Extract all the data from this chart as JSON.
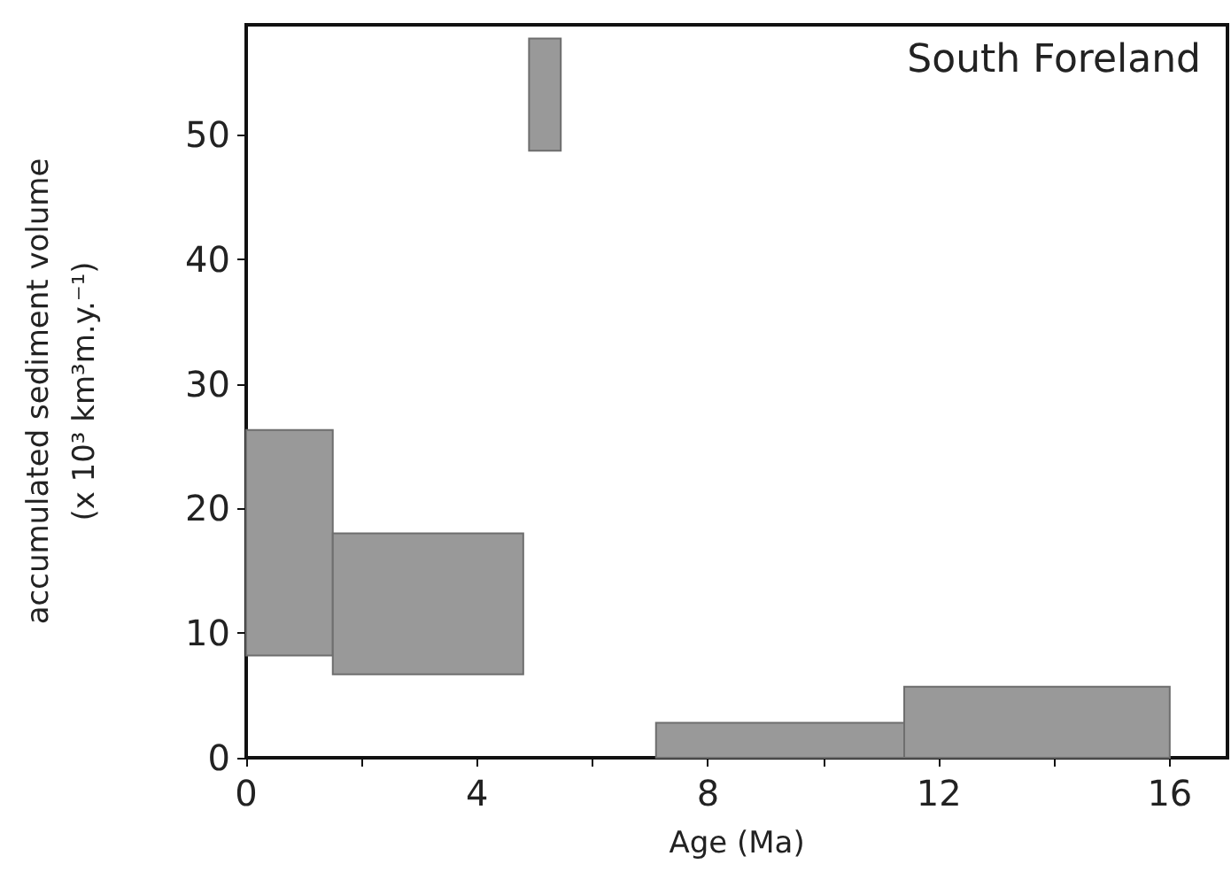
{
  "chart_data": {
    "type": "histogram",
    "title": "South Foreland",
    "xlabel": "Age (Ma)",
    "ylabel": "accumulated sediment volume\n(x 10³ km³m.y.⁻¹)",
    "bins": [
      0,
      1.5,
      4.8,
      4.9,
      5.45,
      7.1,
      11.4,
      16
    ],
    "values": [
      18.1,
      11.3,
      null,
      9,
      null,
      2.8,
      5.7
    ],
    "base": [
      8.2,
      6.7,
      null,
      48.7,
      null,
      0,
      0
    ],
    "color": "#999999",
    "xlim": [
      0,
      17
    ],
    "xticks": [
      0,
      {
        "value": 2,
        "label": null
      },
      4,
      {
        "value": 6,
        "label": null
      },
      8,
      {
        "value": 10,
        "label": null
      },
      12,
      {
        "value": 14,
        "label": null
      },
      16
    ],
    "ylim": [
      0,
      58.8
    ],
    "yticks": [
      0,
      10,
      20,
      30,
      40,
      50
    ],
    "grid": false
  }
}
